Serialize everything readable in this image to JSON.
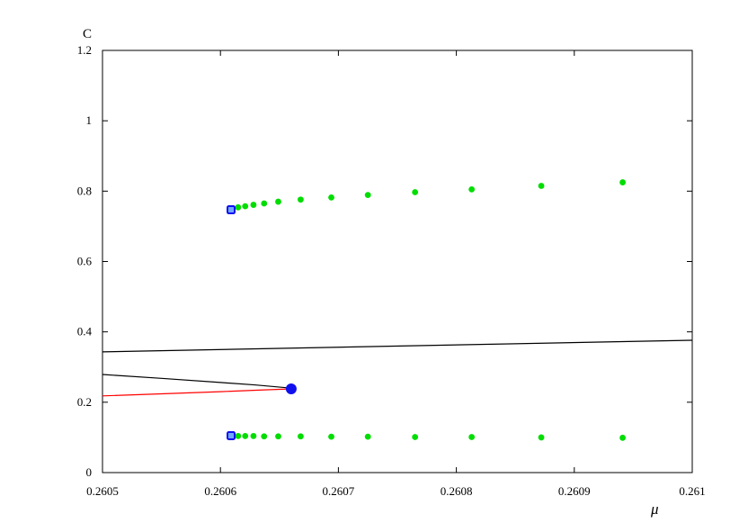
{
  "chart_data": {
    "type": "scatter",
    "title": "",
    "xlabel": "μ",
    "ylabel": "C",
    "xlim": [
      0.2605,
      0.261
    ],
    "ylim": [
      0,
      1.2
    ],
    "grid": false,
    "legend": "none",
    "x_ticks": [
      "0.2605",
      "0.2606",
      "0.2607",
      "0.2608",
      "0.2609",
      "0.261"
    ],
    "x_tick_values": [
      0.2605,
      0.2606,
      0.2607,
      0.2608,
      0.2609,
      0.261
    ],
    "y_ticks": [
      "0",
      "0.2",
      "0.4",
      "0.6",
      "0.8",
      "1",
      "1.2"
    ],
    "y_tick_values": [
      0,
      0.2,
      0.4,
      0.6,
      0.8,
      1.0,
      1.2
    ],
    "series": [
      {
        "kind": "line",
        "color": "#000000",
        "x": [
          0.2605,
          0.261
        ],
        "y": [
          0.343,
          0.376
        ]
      },
      {
        "kind": "line",
        "color": "#000000",
        "x": [
          0.2605,
          0.26055,
          0.2606,
          0.26063,
          0.26066
        ],
        "y": [
          0.279,
          0.268,
          0.256,
          0.249,
          0.24
        ]
      },
      {
        "kind": "line",
        "color": "#ff0000",
        "x": [
          0.2605,
          0.26055,
          0.2606,
          0.26063,
          0.26066
        ],
        "y": [
          0.218,
          0.224,
          0.23,
          0.234,
          0.238
        ]
      },
      {
        "kind": "points",
        "color": "#00dd00",
        "x": [
          0.26061,
          0.260615,
          0.260621,
          0.260628,
          0.260637,
          0.260649,
          0.260668,
          0.260694,
          0.260725,
          0.260765,
          0.260813,
          0.260872,
          0.260941
        ],
        "y": [
          0.75,
          0.754,
          0.757,
          0.761,
          0.765,
          0.77,
          0.776,
          0.782,
          0.789,
          0.797,
          0.805,
          0.815,
          0.825
        ]
      },
      {
        "kind": "points",
        "color": "#00dd00",
        "x": [
          0.26061,
          0.260615,
          0.260621,
          0.260628,
          0.260637,
          0.260649,
          0.260668,
          0.260694,
          0.260725,
          0.260765,
          0.260813,
          0.260872,
          0.260941
        ],
        "y": [
          0.104,
          0.104,
          0.104,
          0.104,
          0.103,
          0.103,
          0.103,
          0.102,
          0.102,
          0.101,
          0.101,
          0.1,
          0.099
        ]
      },
      {
        "kind": "markers",
        "color": "#1010ee",
        "x": [
          0.260609,
          0.260609
        ],
        "y": [
          0.747,
          0.105
        ]
      },
      {
        "kind": "bifurcation",
        "color": "#1010ee",
        "x": [
          0.26066
        ],
        "y": [
          0.238
        ]
      }
    ]
  }
}
